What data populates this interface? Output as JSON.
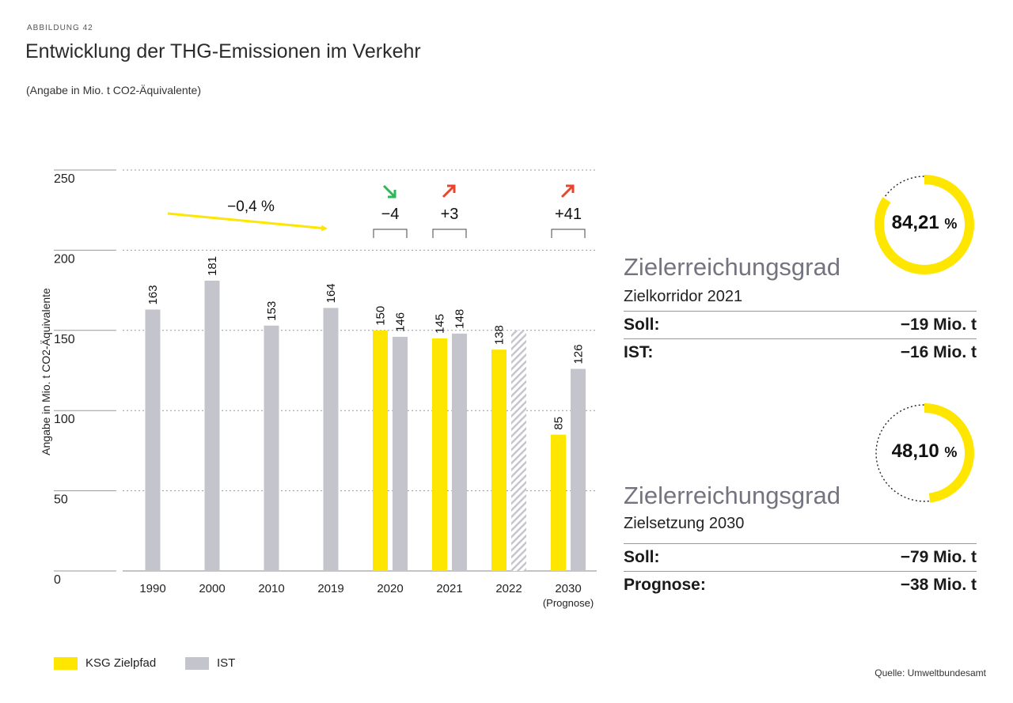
{
  "header": {
    "eyebrow": "ABBILDUNG 42",
    "title": "Entwicklung der THG-Emissionen im Verkehr",
    "subtitle": "(Angabe in Mio. t CO2-Äquivalente)"
  },
  "chart_data": {
    "type": "bar",
    "ylabel": "Angabe in Mio. t CO2-Äquivalente",
    "ylim": [
      0,
      250
    ],
    "yticks": [
      0,
      50,
      100,
      150,
      200,
      250
    ],
    "grid": true,
    "categories": [
      "1990",
      "2000",
      "2010",
      "2019",
      "2020",
      "2021",
      "2022",
      "2030"
    ],
    "category_notes": {
      "2030": "(Prognose)"
    },
    "series": [
      {
        "name": "KSG Zielpfad",
        "color": "#FFE600",
        "values": [
          null,
          null,
          null,
          null,
          150,
          145,
          138,
          85
        ]
      },
      {
        "name": "IST",
        "color": "#C4C4CC",
        "values": [
          163,
          181,
          153,
          164,
          146,
          148,
          150,
          126
        ],
        "hatched_categories": [
          "2022"
        ],
        "unlabeled_categories": [
          "2022"
        ]
      }
    ],
    "annotations": {
      "trend_label": "−0,4 %",
      "differences": [
        {
          "category": "2020",
          "label": "−4",
          "direction": "down",
          "color": "#2DB757"
        },
        {
          "category": "2021",
          "label": "+3",
          "direction": "up",
          "color": "#E8452C"
        },
        {
          "category": "2030",
          "label": "+41",
          "direction": "up",
          "color": "#E8452C"
        }
      ]
    },
    "legend_position": "bottom-left"
  },
  "legend": [
    {
      "label": "KSG Zielpfad",
      "color": "#FFE600"
    },
    {
      "label": "IST",
      "color": "#C4C4CC"
    }
  ],
  "panels": [
    {
      "percent_value": "84,21",
      "percent_sign": "%",
      "fraction": 0.8421,
      "heading": "Zielerreichungsgrad",
      "subheading": "Zielkorridor 2021",
      "rows": [
        {
          "label": "Soll:",
          "value": "−19 Mio. t"
        },
        {
          "label": "IST:",
          "value": "−16 Mio. t"
        }
      ]
    },
    {
      "percent_value": "48,10",
      "percent_sign": "%",
      "fraction": 0.481,
      "heading": "Zielerreichungsgrad",
      "subheading": "Zielsetzung 2030",
      "rows": [
        {
          "label": "Soll:",
          "value": "−79 Mio. t"
        },
        {
          "label": "Prognose:",
          "value": "−38 Mio. t"
        }
      ]
    }
  ],
  "source": "Quelle: Umweltbundesamt",
  "colors": {
    "yellow": "#FFE600",
    "gray": "#C4C4CC",
    "down": "#2DB757",
    "up": "#E8452C"
  }
}
